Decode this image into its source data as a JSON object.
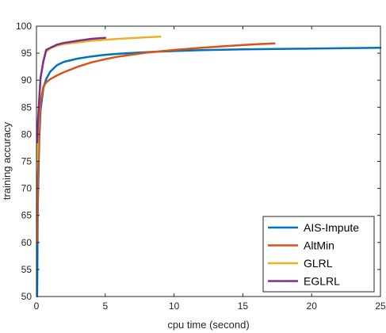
{
  "chart_data": {
    "type": "line",
    "title": "",
    "xlabel": "cpu time (second)",
    "ylabel": "training accuracy",
    "xlim": [
      0,
      25
    ],
    "ylim": [
      50,
      100
    ],
    "xticks": [
      0,
      5,
      10,
      15,
      20,
      25
    ],
    "yticks": [
      50,
      55,
      60,
      65,
      70,
      75,
      80,
      85,
      90,
      95,
      100
    ],
    "grid": false,
    "legend_position": "bottom-right",
    "series": [
      {
        "name": "AIS-Impute",
        "color": "#0072BD",
        "x": [
          0.05,
          0.1,
          0.2,
          0.3,
          0.5,
          0.7,
          1.0,
          1.5,
          2.0,
          3.0,
          4.0,
          5.0,
          6.0,
          8.0,
          10.0,
          12.0,
          15.0,
          20.0,
          25.0
        ],
        "y": [
          50.0,
          67.0,
          79.0,
          84.5,
          88.5,
          90.2,
          91.6,
          92.8,
          93.4,
          94.0,
          94.4,
          94.7,
          94.9,
          95.2,
          95.4,
          95.55,
          95.7,
          95.85,
          96.0
        ]
      },
      {
        "name": "AltMin",
        "color": "#D95319",
        "x": [
          0.05,
          0.1,
          0.2,
          0.3,
          0.5,
          0.7,
          1.0,
          1.5,
          2.0,
          3.0,
          4.0,
          5.0,
          6.0,
          8.0,
          10.0,
          12.0,
          14.0,
          16.0,
          17.3
        ],
        "y": [
          60.0,
          72.0,
          81.0,
          86.0,
          88.8,
          89.6,
          90.2,
          90.9,
          91.5,
          92.5,
          93.3,
          93.9,
          94.4,
          95.1,
          95.6,
          96.0,
          96.35,
          96.65,
          96.8
        ]
      },
      {
        "name": "GLRL",
        "color": "#EDB120",
        "x": [
          0.05,
          0.1,
          0.2,
          0.3,
          0.5,
          0.7,
          1.0,
          1.5,
          2.0,
          3.0,
          4.0,
          5.0,
          6.0,
          7.0,
          8.0,
          9.0
        ],
        "y": [
          75.0,
          80.0,
          86.5,
          90.5,
          93.5,
          95.3,
          95.9,
          96.4,
          96.7,
          97.0,
          97.3,
          97.5,
          97.65,
          97.8,
          97.95,
          98.05
        ]
      },
      {
        "name": "EGLRL",
        "color": "#7E2F8E",
        "x": [
          0.05,
          0.1,
          0.2,
          0.3,
          0.5,
          0.7,
          1.0,
          1.5,
          2.0,
          3.0,
          4.0,
          5.0
        ],
        "y": [
          78.5,
          82.0,
          86.5,
          90.5,
          93.5,
          95.6,
          96.0,
          96.6,
          96.9,
          97.3,
          97.65,
          97.85
        ]
      }
    ]
  }
}
